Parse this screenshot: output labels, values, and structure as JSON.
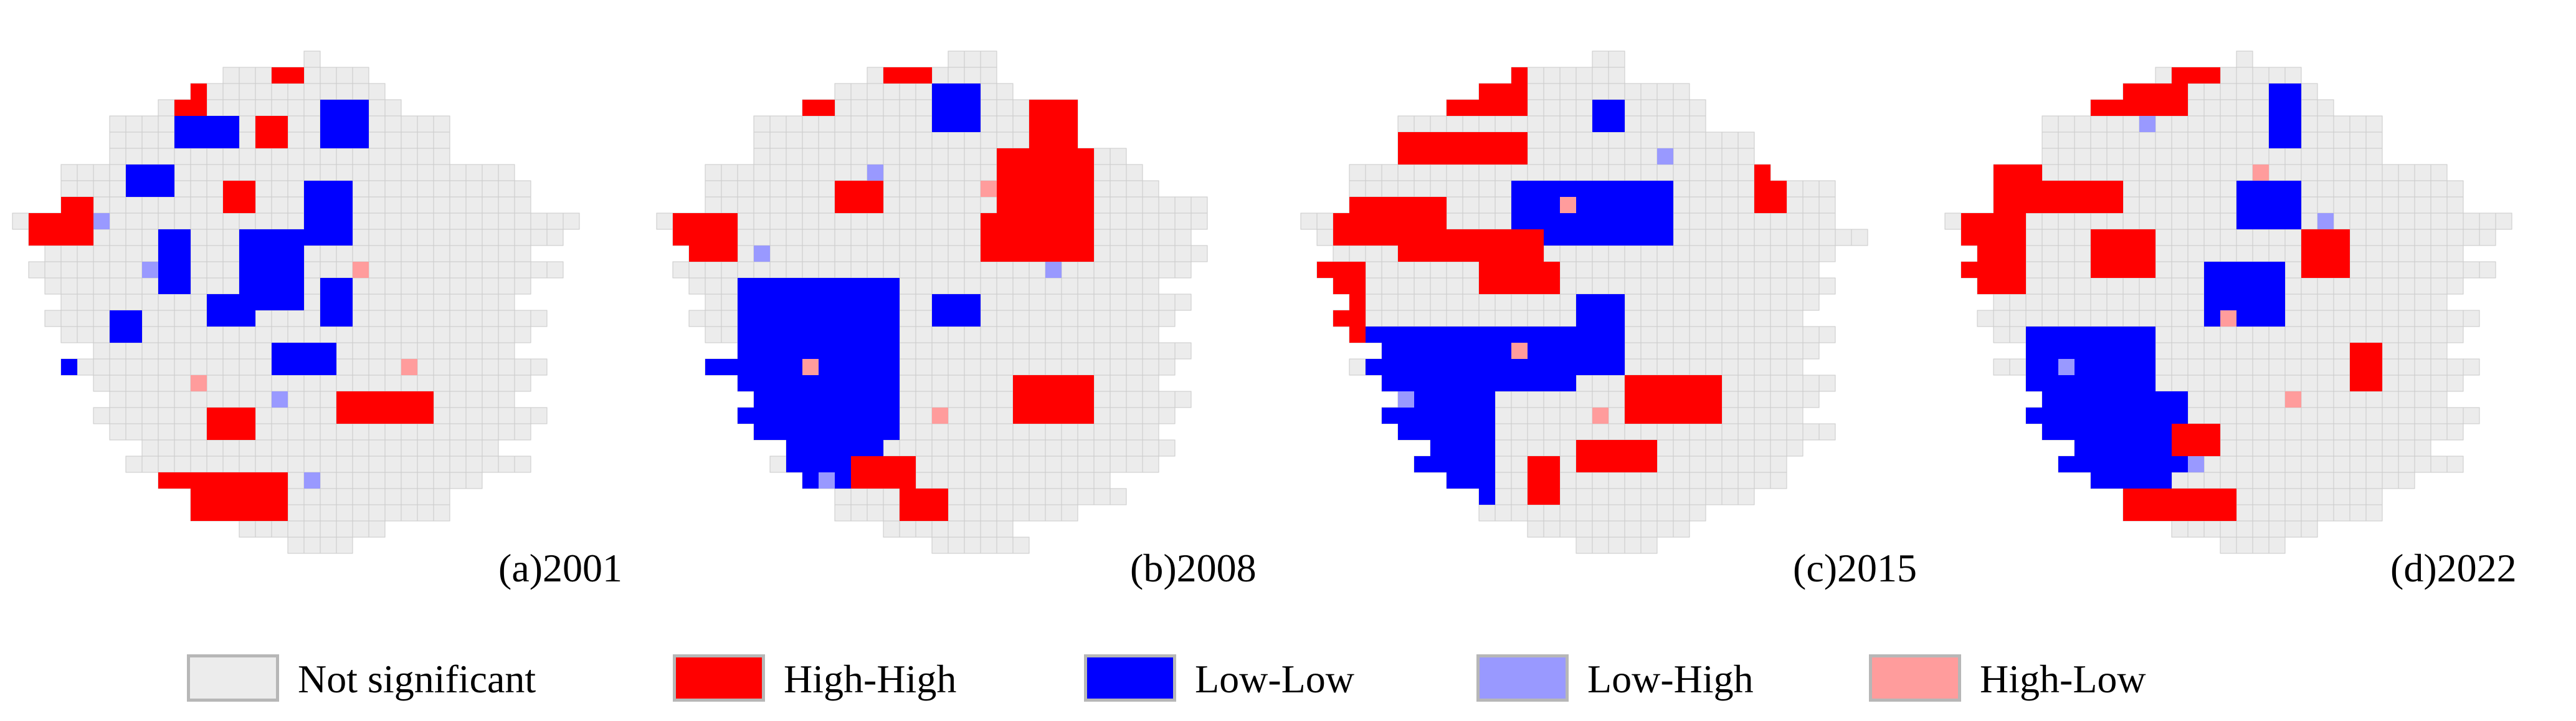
{
  "figure": {
    "colors": {
      "not_significant": "#ececec",
      "not_significant_grid": "#c9c9c9",
      "high_high": "#ff0000",
      "low_low": "#0000ff",
      "low_high": "#9999ff",
      "high_low": "#ff9c9c"
    },
    "panels": [
      {
        "id": "a",
        "caption": "(a)2001"
      },
      {
        "id": "b",
        "caption": "(b)2008"
      },
      {
        "id": "c",
        "caption": "(c)2015"
      },
      {
        "id": "d",
        "caption": "(d)2022"
      }
    ],
    "legend": [
      {
        "key": "not_significant",
        "label": "Not significant",
        "color": "#ececec"
      },
      {
        "key": "high_high",
        "label": "High-High",
        "color": "#ff0000"
      },
      {
        "key": "low_low",
        "label": "Low-Low",
        "color": "#0000ff"
      },
      {
        "key": "low_high",
        "label": "Low-High",
        "color": "#9999ff"
      },
      {
        "key": "high_low",
        "label": "High-Low",
        "color": "#ff9c9c"
      }
    ]
  }
}
